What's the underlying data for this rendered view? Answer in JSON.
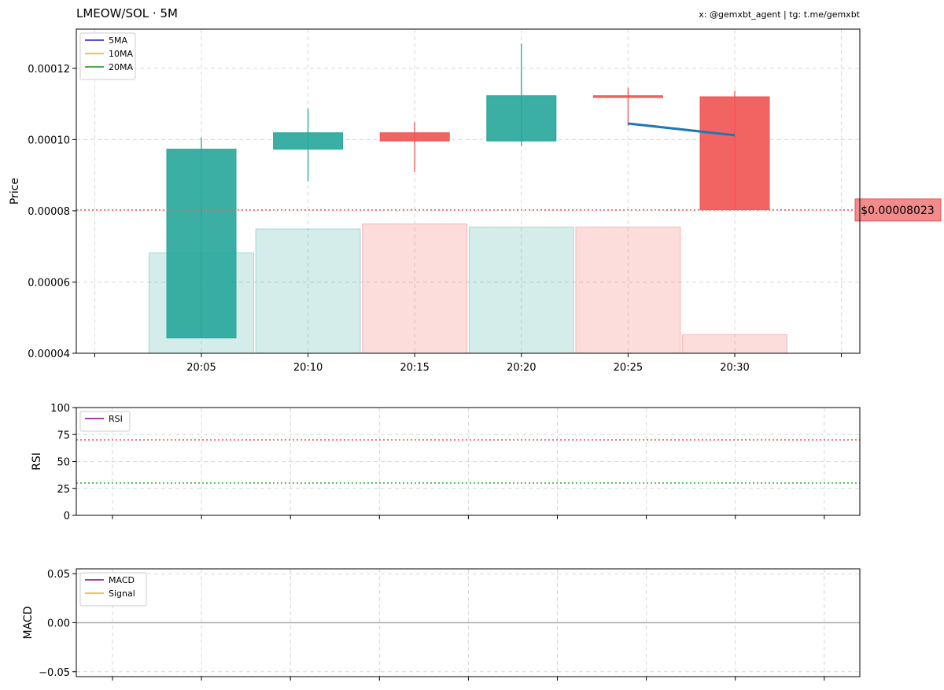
{
  "header": {
    "title": "LMEOW/SOL · 5M",
    "credit": "x: @gemxbt_agent | tg: t.me/gemxbt"
  },
  "colors": {
    "up": "#26a69a",
    "down": "#ef5350",
    "ma_line": "#1f77b4",
    "grid": "#d8d8d8",
    "overbought": "#ff4d4d",
    "oversold": "#33bb33",
    "price_line": "#ff5c5c"
  },
  "chart_data": [
    {
      "id": "price",
      "type": "candlestick",
      "ylabel": "Price",
      "ylim": [
        4e-05,
        0.000131
      ],
      "yticks": [
        4e-05,
        6e-05,
        8e-05,
        0.0001,
        0.00012
      ],
      "ytick_labels": [
        "0.00004",
        "0.00006",
        "0.00008",
        "0.00010",
        "0.00012"
      ],
      "xticks": [
        "20:05",
        "20:10",
        "20:15",
        "20:20",
        "20:25",
        "20:30"
      ],
      "grid": true,
      "legend_position": "top-left",
      "legend": [
        {
          "label": "5MA",
          "color": "#1f1fd0"
        },
        {
          "label": "10MA",
          "color": "#ffa500"
        },
        {
          "label": "20MA",
          "color": "#1a8a1a"
        }
      ],
      "candles": [
        {
          "time": "20:05",
          "open": 4.43e-05,
          "high": 0.0001006,
          "low": 4.43e-05,
          "close": 9.73e-05
        },
        {
          "time": "20:10",
          "open": 9.73e-05,
          "high": 0.0001087,
          "low": 8.83e-05,
          "close": 0.0001019
        },
        {
          "time": "20:15",
          "open": 0.0001019,
          "high": 0.0001049,
          "low": 9.09e-05,
          "close": 9.96e-05
        },
        {
          "time": "20:20",
          "open": 9.96e-05,
          "high": 0.0001269,
          "low": 9.82e-05,
          "close": 0.0001123
        },
        {
          "time": "20:25",
          "open": 0.0001123,
          "high": 0.0001145,
          "low": 0.0001038,
          "close": 0.0001118
        },
        {
          "time": "20:30",
          "open": 0.000112,
          "high": 0.0001137,
          "low": 8.03e-05,
          "close": 8.03e-05
        }
      ],
      "volume_overlay": [
        {
          "time": "20:05",
          "level": 6.82e-05,
          "direction": "up"
        },
        {
          "time": "20:10",
          "level": 7.49e-05,
          "direction": "up"
        },
        {
          "time": "20:15",
          "level": 7.63e-05,
          "direction": "down"
        },
        {
          "time": "20:20",
          "level": 7.54e-05,
          "direction": "up"
        },
        {
          "time": "20:25",
          "level": 7.54e-05,
          "direction": "down"
        },
        {
          "time": "20:30",
          "level": 4.52e-05,
          "direction": "down"
        }
      ],
      "ma_line": [
        {
          "time": "20:25",
          "value": 0.0001045
        },
        {
          "time": "20:30",
          "value": 0.0001012
        }
      ],
      "current_price": 8.023e-05,
      "current_price_label": "$0.00008023"
    },
    {
      "id": "rsi",
      "type": "line",
      "ylabel": "RSI",
      "ylim": [
        0,
        100
      ],
      "yticks": [
        0,
        25,
        50,
        75,
        100
      ],
      "ytick_labels": [
        "0",
        "25",
        "50",
        "75",
        "100"
      ],
      "overbought": 70,
      "oversold": 30,
      "grid": true,
      "legend_position": "top-left",
      "legend": [
        {
          "label": "RSI",
          "color": "#800080"
        }
      ]
    },
    {
      "id": "macd",
      "type": "line",
      "ylabel": "MACD",
      "ylim": [
        -0.055,
        0.055
      ],
      "yticks": [
        -0.05,
        0,
        0.05
      ],
      "ytick_labels": [
        "−0.05",
        "0.00",
        "0.05"
      ],
      "zero_line": 0,
      "grid": true,
      "legend_position": "top-left",
      "legend": [
        {
          "label": "MACD",
          "color": "#800080"
        },
        {
          "label": "Signal",
          "color": "#ffa500"
        }
      ]
    }
  ]
}
